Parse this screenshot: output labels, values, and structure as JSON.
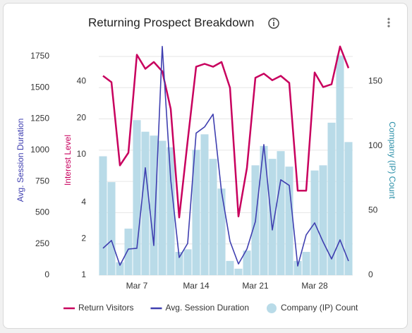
{
  "chart_data": {
    "type": "combo",
    "title": "Returning Prospect Breakdown",
    "categories": [
      null,
      null,
      null,
      null,
      "Mar 7",
      null,
      null,
      null,
      null,
      null,
      null,
      "Mar 14",
      null,
      null,
      null,
      null,
      null,
      null,
      "Mar 21",
      null,
      null,
      null,
      null,
      null,
      null,
      "Mar 28",
      null,
      null,
      null,
      null
    ],
    "ylabel": "Avg. Session Duration",
    "ylim": [
      0,
      1840
    ],
    "yticks": [
      0,
      250,
      500,
      750,
      1000,
      1250,
      1500,
      1750
    ],
    "y2label": "Interest Level",
    "y2scale": "log",
    "y2lim": [
      1,
      80
    ],
    "y2ticks": [
      1,
      2,
      4,
      10,
      20,
      40
    ],
    "y3label": "Company (IP) Count",
    "y3lim": [
      0,
      178
    ],
    "y3ticks": [
      0,
      50,
      100,
      150
    ],
    "grid": true,
    "legend": "bottom",
    "series": [
      {
        "name": "Return Visitors",
        "type": "line",
        "axis": "y2",
        "color": "#c8005e",
        "values": [
          44.6,
          39.5,
          8.1,
          10.3,
          66.6,
          51,
          58,
          48.6,
          23.7,
          3.0,
          12.9,
          53,
          56,
          53,
          58,
          35.5,
          3.06,
          7.7,
          43,
          46.5,
          41,
          44.6,
          39,
          5.0,
          5.0,
          47.5,
          36,
          38,
          78,
          51.7
        ]
      },
      {
        "name": "Avg. Session Duration",
        "type": "line",
        "axis": "y",
        "color": "#3f3fb0",
        "values": [
          215,
          277,
          79,
          209,
          215,
          859,
          237,
          1830,
          763,
          141,
          254,
          1136,
          1186,
          1288,
          667,
          271,
          90,
          209,
          429,
          1045,
          362,
          763,
          718,
          73,
          322,
          418,
          266,
          130,
          282,
          113
        ]
      },
      {
        "name": "Company (IP) Count",
        "type": "bar",
        "axis": "y3",
        "color": "#b9dbe8",
        "values": [
          92,
          72,
          10,
          36,
          120,
          111,
          108,
          104,
          99,
          18,
          20,
          97,
          109,
          90,
          67,
          11,
          5,
          19,
          85,
          100,
          90,
          96,
          84,
          11,
          18,
          81,
          85,
          118,
          170,
          103
        ]
      }
    ]
  }
}
